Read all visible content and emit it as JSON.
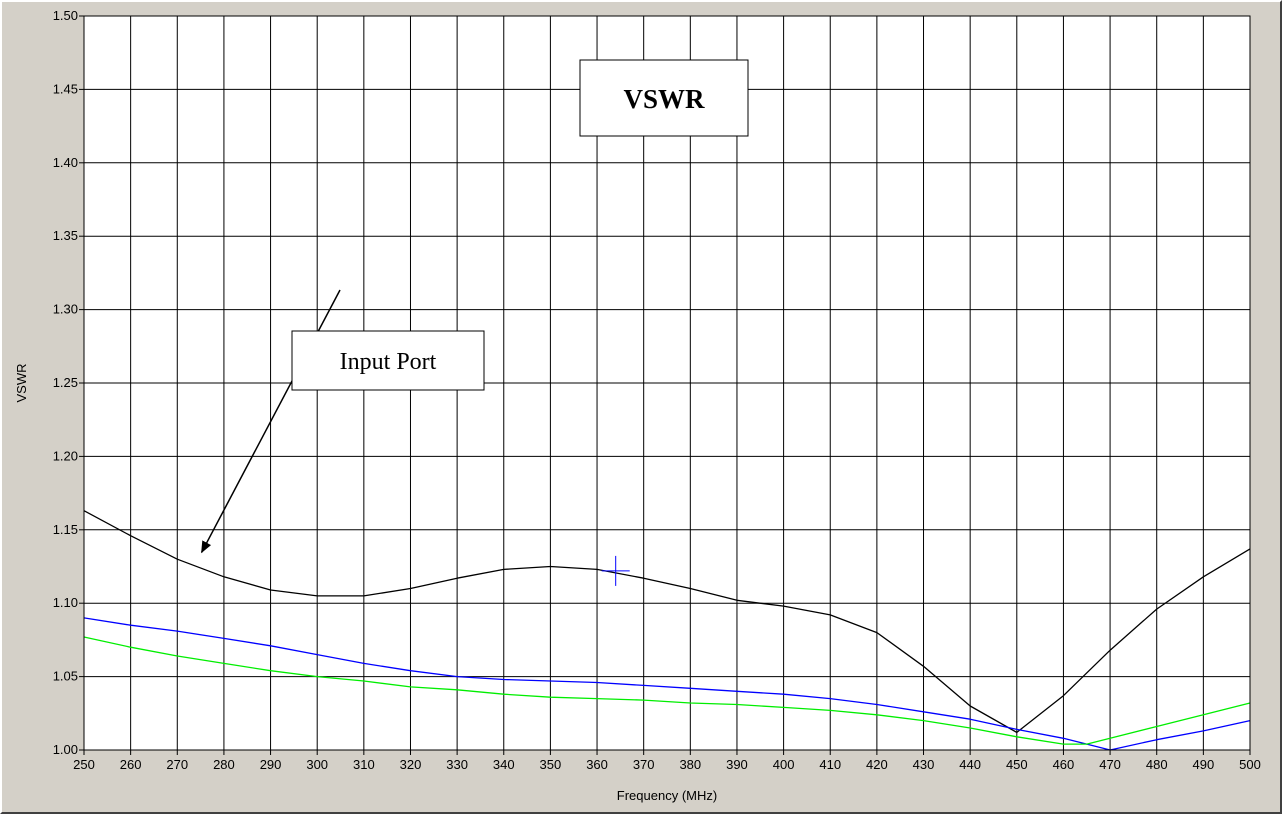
{
  "window": {
    "frame_color": "#d4d0c8",
    "plot_background": "#ffffff"
  },
  "chart_data": {
    "type": "line",
    "title": "",
    "xlabel": "Frequency (MHz)",
    "ylabel": "VSWR",
    "xlim": [
      250,
      500
    ],
    "ylim": [
      1.0,
      1.5
    ],
    "grid": true,
    "xticks": [
      250,
      260,
      270,
      280,
      290,
      300,
      310,
      320,
      330,
      340,
      350,
      360,
      370,
      380,
      390,
      400,
      410,
      420,
      430,
      440,
      450,
      460,
      470,
      480,
      490,
      500
    ],
    "xtick_labels": [
      "250",
      "260",
      "270",
      "280",
      "290",
      "300",
      "310",
      "320",
      "330",
      "340",
      "350",
      "360",
      "370",
      "380",
      "390",
      "400",
      "410",
      "420",
      "430",
      "440",
      "450",
      "460",
      "470",
      "480",
      "490",
      "500"
    ],
    "yticks": [
      1.0,
      1.05,
      1.1,
      1.15,
      1.2,
      1.25,
      1.3,
      1.35,
      1.4,
      1.45,
      1.5
    ],
    "ytick_labels": [
      "1.00",
      "1.05",
      "1.10",
      "1.15",
      "1.20",
      "1.25",
      "1.30",
      "1.35",
      "1.40",
      "1.45",
      "1.50"
    ],
    "series": [
      {
        "color": "#000000",
        "x": [
          250,
          260,
          270,
          280,
          290,
          300,
          310,
          320,
          330,
          340,
          350,
          360,
          370,
          380,
          390,
          400,
          410,
          420,
          430,
          440,
          450,
          460,
          470,
          480,
          490,
          500
        ],
        "values": [
          1.163,
          1.146,
          1.13,
          1.118,
          1.109,
          1.105,
          1.105,
          1.11,
          1.117,
          1.123,
          1.125,
          1.123,
          1.117,
          1.11,
          1.102,
          1.098,
          1.092,
          1.08,
          1.057,
          1.03,
          1.012,
          1.037,
          1.068,
          1.096,
          1.118,
          1.137
        ]
      },
      {
        "color": "#0000ff",
        "x": [
          250,
          260,
          270,
          280,
          290,
          300,
          310,
          320,
          330,
          340,
          350,
          360,
          370,
          380,
          390,
          400,
          410,
          420,
          430,
          440,
          450,
          460,
          465,
          470,
          480,
          490,
          500
        ],
        "values": [
          1.09,
          1.085,
          1.081,
          1.076,
          1.071,
          1.065,
          1.059,
          1.054,
          1.05,
          1.048,
          1.047,
          1.046,
          1.044,
          1.042,
          1.04,
          1.038,
          1.035,
          1.031,
          1.026,
          1.021,
          1.014,
          1.008,
          1.004,
          1.0,
          1.007,
          1.013,
          1.02
        ]
      },
      {
        "color": "#00ee00",
        "x": [
          250,
          260,
          270,
          280,
          290,
          300,
          310,
          320,
          330,
          340,
          350,
          360,
          370,
          380,
          390,
          400,
          410,
          420,
          430,
          440,
          450,
          460,
          465,
          470,
          480,
          490,
          500
        ],
        "values": [
          1.077,
          1.07,
          1.064,
          1.059,
          1.054,
          1.05,
          1.047,
          1.043,
          1.041,
          1.038,
          1.036,
          1.035,
          1.034,
          1.032,
          1.031,
          1.029,
          1.027,
          1.024,
          1.02,
          1.015,
          1.009,
          1.004,
          1.004,
          1.008,
          1.016,
          1.024,
          1.032
        ]
      }
    ],
    "annotations": [
      {
        "text": "VSWR",
        "bold": true
      },
      {
        "text": "Input Port",
        "bold": false,
        "arrow_to": [
          275,
          1.138
        ]
      }
    ],
    "cursor": {
      "x": 364,
      "y": 1.122,
      "color": "#0000ff"
    }
  }
}
